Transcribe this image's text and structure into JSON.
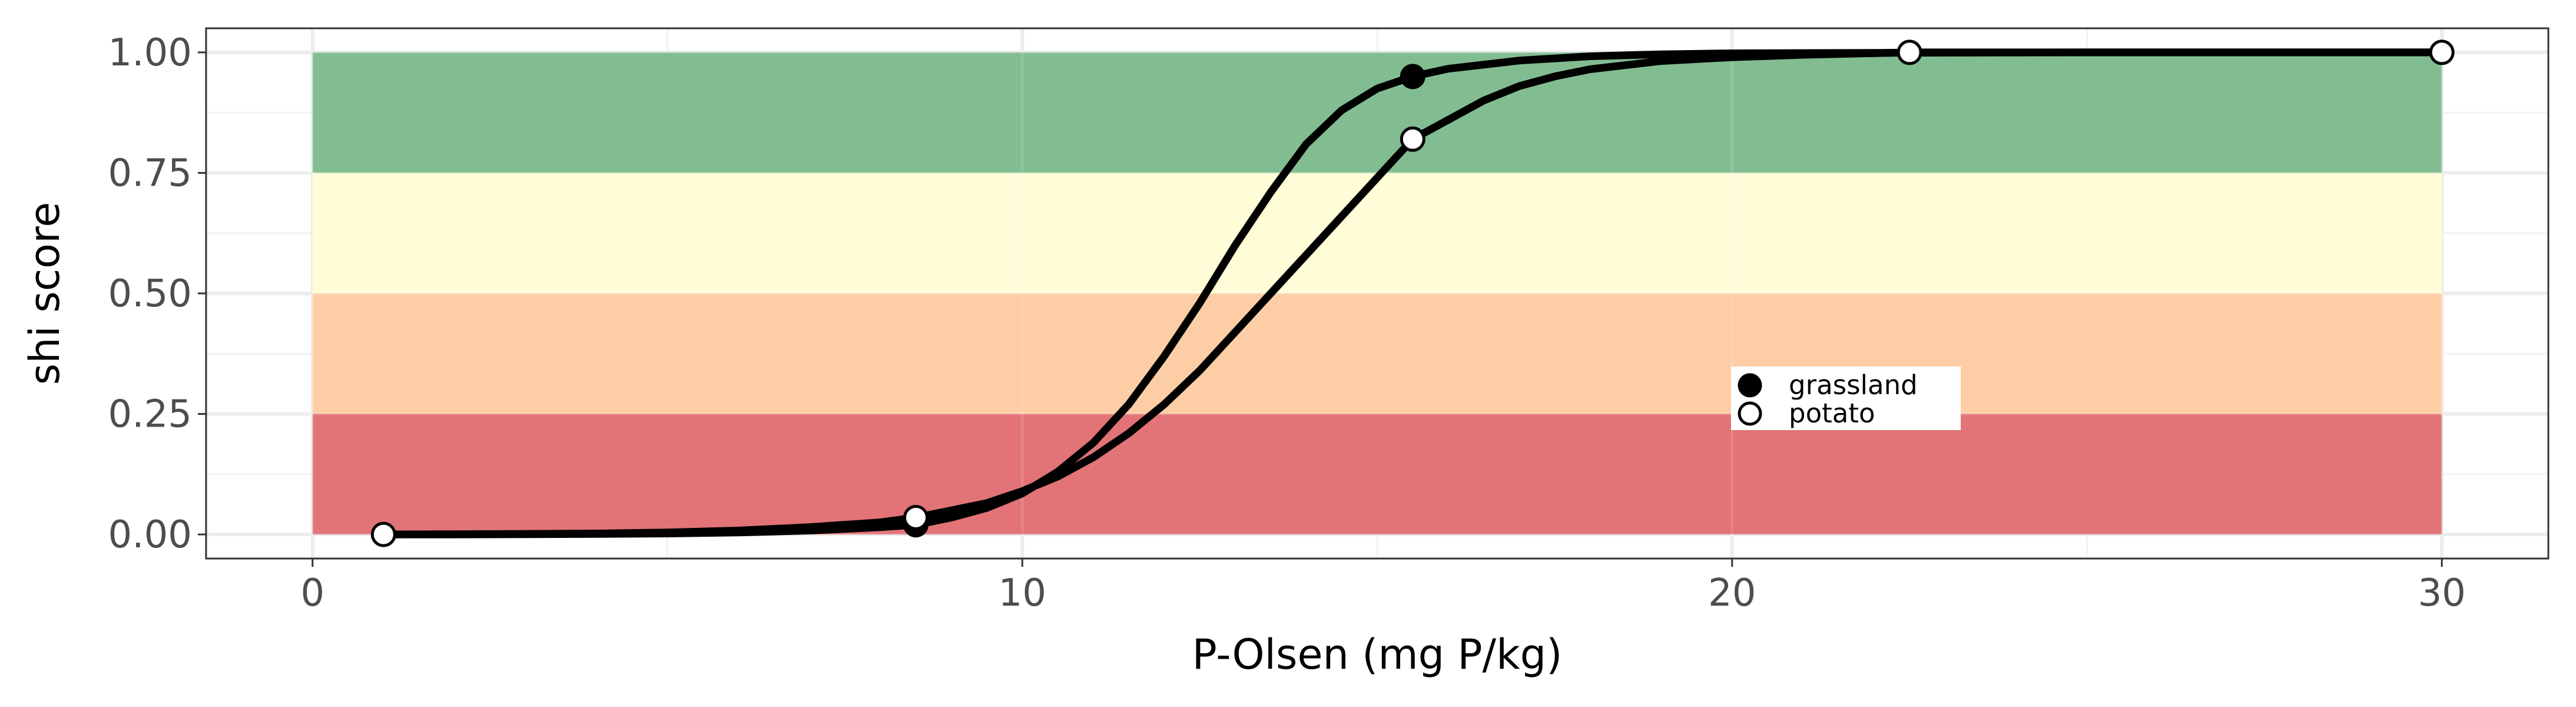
{
  "chart_data": {
    "type": "line",
    "xlabel": "P-Olsen (mg P/kg)",
    "ylabel": "shi score",
    "xlim": [
      -1.5,
      31.5
    ],
    "ylim": [
      -0.05,
      1.05
    ],
    "x_ticks": [
      0,
      10,
      20,
      30
    ],
    "x_tick_labels": [
      "0",
      "10",
      "20",
      "30"
    ],
    "y_ticks": [
      0,
      0.25,
      0.5,
      0.75,
      1
    ],
    "y_tick_labels": [
      "0.00",
      "0.25",
      "0.50",
      "0.75",
      "1.00"
    ],
    "grid": true,
    "legend_position": "center-right",
    "background_bands": [
      {
        "y0": 0.0,
        "y1": 0.25,
        "color": "#e06c70"
      },
      {
        "y0": 0.25,
        "y1": 0.5,
        "color": "#fdcba0"
      },
      {
        "y0": 0.5,
        "y1": 0.75,
        "color": "#fefdd5"
      },
      {
        "y0": 0.75,
        "y1": 1.0,
        "color": "#7bb98c"
      }
    ],
    "bands_x_range": [
      0,
      30
    ],
    "series": [
      {
        "name": "grassland",
        "marker": "filled-circle",
        "line_color": "#000000",
        "curve": {
          "x": [
            1,
            2,
            3,
            4,
            5,
            6,
            7,
            8,
            8.5,
            9,
            9.5,
            10,
            10.5,
            11,
            11.5,
            12,
            12.5,
            13,
            13.5,
            14,
            14.5,
            15,
            15.5,
            16,
            17,
            18,
            19,
            20,
            22,
            25,
            30
          ],
          "y": [
            0.0,
            0.0,
            0.0005,
            0.001,
            0.002,
            0.004,
            0.008,
            0.015,
            0.02,
            0.035,
            0.055,
            0.085,
            0.13,
            0.19,
            0.27,
            0.37,
            0.48,
            0.6,
            0.71,
            0.81,
            0.88,
            0.925,
            0.95,
            0.966,
            0.983,
            0.992,
            0.996,
            0.998,
            0.999,
            1.0,
            1.0
          ]
        },
        "points": {
          "x": [
            8.5,
            15.5
          ],
          "y": [
            0.02,
            0.95
          ]
        }
      },
      {
        "name": "potato",
        "marker": "open-circle",
        "line_color": "#000000",
        "curve": {
          "x": [
            1,
            2,
            3,
            4,
            5,
            6,
            7,
            8,
            8.5,
            9,
            9.5,
            10,
            10.5,
            11,
            11.5,
            12,
            12.5,
            13,
            13.5,
            14,
            14.5,
            15,
            15.5,
            16,
            16.5,
            17,
            17.5,
            18,
            19,
            20,
            21,
            22.5,
            25,
            30
          ],
          "y": [
            0.0,
            0.0005,
            0.001,
            0.002,
            0.004,
            0.008,
            0.015,
            0.025,
            0.035,
            0.05,
            0.065,
            0.09,
            0.12,
            0.16,
            0.21,
            0.27,
            0.34,
            0.42,
            0.5,
            0.58,
            0.66,
            0.74,
            0.82,
            0.86,
            0.9,
            0.93,
            0.95,
            0.965,
            0.982,
            0.99,
            0.995,
            1.0,
            1.0,
            1.0
          ]
        },
        "points": {
          "x": [
            1,
            8.5,
            15.5,
            22.5,
            30
          ],
          "y": [
            0.0,
            0.035,
            0.82,
            1.0,
            1.0
          ]
        }
      }
    ]
  }
}
